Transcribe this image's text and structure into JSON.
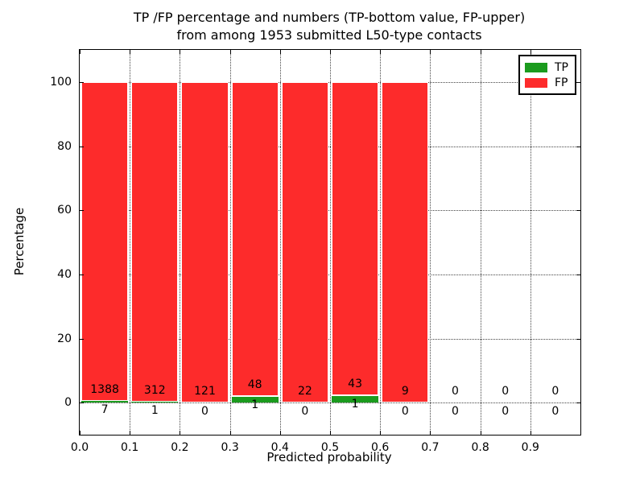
{
  "figure": {
    "title_line1": "TP /FP percentage and numbers (TP-bottom value, FP-upper)",
    "title_line2": "from among 1953 submitted L50-type contacts",
    "xlabel": "Predicted probability",
    "ylabel": "Percentage"
  },
  "legend": {
    "items": [
      {
        "label": "TP",
        "color": "#1b9b1e"
      },
      {
        "label": "FP",
        "color": "#fd2b2b"
      }
    ]
  },
  "chart_data": {
    "type": "bar",
    "stacked": true,
    "normalized_to_percent": true,
    "title": "TP /FP percentage and numbers (TP-bottom value, FP-upper) from among 1953 submitted L50-type contacts",
    "xlabel": "Predicted probability",
    "ylabel": "Percentage",
    "xlim": [
      0.0,
      1.0
    ],
    "ylim": [
      -10,
      110
    ],
    "grid": {
      "style": "dotted",
      "x": true,
      "y": true
    },
    "legend_position": "upper right",
    "total_submitted": 1953,
    "bins": {
      "start": 0.0,
      "width": 0.1,
      "count": 10
    },
    "x_ticks": {
      "values": [
        0.0,
        0.1,
        0.2,
        0.3,
        0.4,
        0.5,
        0.6,
        0.7,
        0.8,
        0.9,
        1.0
      ],
      "labels": [
        "0.0",
        "0.1",
        "0.2",
        "0.3",
        "0.4",
        "0.5",
        "0.6",
        "0.7",
        "0.8",
        "0.9",
        ""
      ]
    },
    "y_ticks": {
      "values": [
        0,
        20,
        40,
        60,
        80,
        100
      ],
      "labels": [
        "0",
        "20",
        "40",
        "60",
        "80",
        "100"
      ]
    },
    "series": [
      {
        "name": "TP",
        "color": "#1b9b1e",
        "counts": [
          7,
          1,
          0,
          1,
          0,
          1,
          0,
          0,
          0,
          0
        ]
      },
      {
        "name": "FP",
        "color": "#fd2b2b",
        "counts": [
          1388,
          312,
          121,
          48,
          22,
          43,
          9,
          0,
          0,
          0
        ]
      }
    ]
  }
}
